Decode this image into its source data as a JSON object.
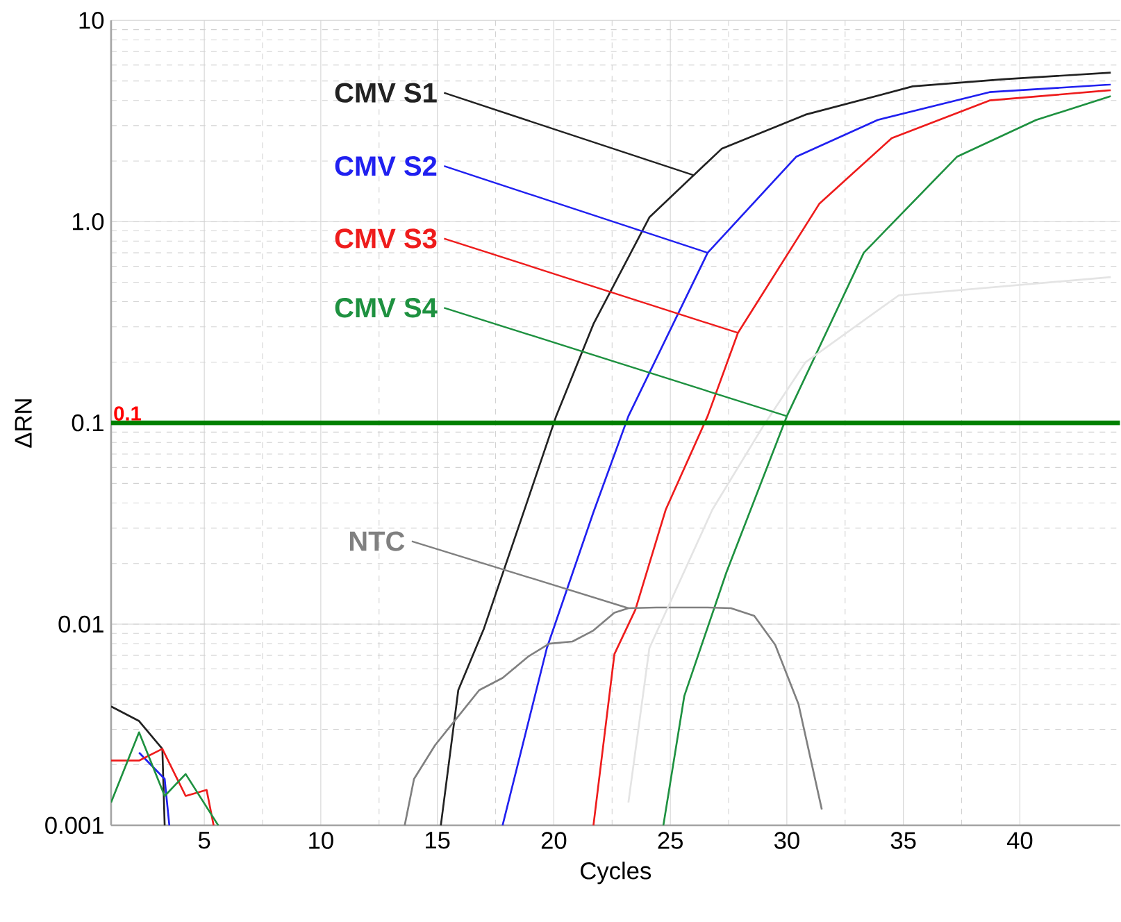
{
  "chart_data": {
    "type": "line",
    "xlabel": "Cycles",
    "ylabel": "ΔRN",
    "log": "y",
    "grid": true,
    "legend": false,
    "marker": "none",
    "line_style": "solid",
    "xlim": [
      1,
      44.3
    ],
    "xticks": [
      5,
      10,
      15,
      20,
      25,
      30,
      35,
      40
    ],
    "ylim": [
      0.001,
      10
    ],
    "yticks": [
      0.001,
      0.01,
      0.1,
      {
        "value": 1,
        "label": "1.0"
      },
      10
    ],
    "ref_lines": [
      {
        "axis": "y",
        "value": 0.1,
        "label": "0.1",
        "color": "#008000"
      }
    ],
    "series": [
      {
        "name": "CMV S1",
        "color": "#222222",
        "x": [
          1,
          2.2,
          3.2,
          3.3,
          9,
          15.15,
          15.9,
          17.0,
          18.9,
          20.1,
          21.7,
          24.1,
          26.0,
          27.2,
          30.8,
          35.4,
          39.3,
          43.9
        ],
        "values": [
          0.0039,
          0.0033,
          0.0024,
          0.001,
          null,
          0.001,
          0.0047,
          0.0095,
          0.042,
          0.108,
          0.31,
          1.05,
          1.7,
          2.3,
          3.4,
          4.7,
          5.1,
          5.5
        ]
      },
      {
        "name": "CMV S2",
        "color": "#2020f0",
        "x": [
          2.2,
          3.3,
          3.5,
          9,
          17.8,
          19.7,
          21.7,
          23.2,
          26.6,
          30.4,
          33.9,
          38.7,
          43.9
        ],
        "values": [
          0.0023,
          0.0017,
          0.001,
          null,
          0.001,
          0.0076,
          0.036,
          0.108,
          0.7,
          2.1,
          3.2,
          4.4,
          4.8
        ]
      },
      {
        "name": "CMV S3",
        "color": "#ee1c1c",
        "x": [
          1,
          2.2,
          3.2,
          4.2,
          5.1,
          5.4,
          9,
          21.7,
          22.6,
          23.5,
          24.8,
          26.6,
          27.9,
          31.4,
          34.5,
          38.7,
          43.9
        ],
        "values": [
          0.0021,
          0.0021,
          0.0024,
          0.0014,
          0.0015,
          0.001,
          null,
          0.001,
          0.0071,
          0.0118,
          0.037,
          0.108,
          0.28,
          1.23,
          2.6,
          4.0,
          4.5
        ]
      },
      {
        "name": "CMV S4",
        "color": "#1e9140",
        "x": [
          1,
          2.2,
          3.3,
          4.2,
          5.6,
          9,
          24.7,
          25.6,
          27.4,
          30.0,
          33.3,
          37.3,
          40.7,
          43.9
        ],
        "values": [
          0.0013,
          0.0029,
          0.0014,
          0.0018,
          0.001,
          null,
          0.001,
          0.0044,
          0.018,
          0.108,
          0.7,
          2.1,
          3.2,
          4.2
        ]
      },
      {
        "name": "NTC",
        "color": "#808080",
        "x": [
          13.6,
          14.0,
          14.9,
          16.8,
          17.8,
          18.9,
          19.8,
          20.8,
          21.7,
          22.6,
          23.2,
          24.4,
          26.6,
          27.6,
          28.6,
          29.5,
          30.5,
          31.5
        ],
        "values": [
          0.001,
          0.0017,
          0.0025,
          0.0047,
          0.0054,
          0.0069,
          0.008,
          0.0082,
          0.0093,
          0.0114,
          0.012,
          0.0121,
          0.0121,
          0.012,
          0.011,
          0.0079,
          0.004,
          0.0012
        ]
      },
      {
        "color": "#e4e4e4",
        "x": [
          23.2,
          24.1,
          26.8,
          29,
          30.8,
          34.8,
          43.9
        ],
        "values": [
          0.0013,
          0.0076,
          0.037,
          0.097,
          0.2,
          0.43,
          0.53
        ]
      }
    ]
  }
}
